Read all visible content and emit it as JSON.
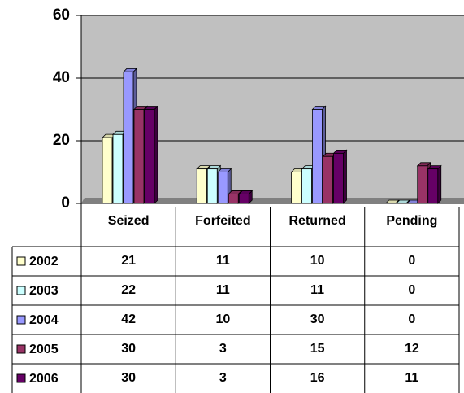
{
  "chart_data": {
    "type": "bar",
    "categories": [
      "Seized",
      "Forfeited",
      "Returned",
      "Pending"
    ],
    "series": [
      {
        "name": "2002",
        "color": "#ffffcc",
        "values": [
          21,
          11,
          10,
          0
        ]
      },
      {
        "name": "2003",
        "color": "#ccffff",
        "values": [
          22,
          11,
          11,
          0
        ]
      },
      {
        "name": "2004",
        "color": "#9999ff",
        "values": [
          42,
          10,
          30,
          0
        ]
      },
      {
        "name": "2005",
        "color": "#993366",
        "values": [
          30,
          3,
          15,
          12
        ]
      },
      {
        "name": "2006",
        "color": "#660066",
        "values": [
          30,
          3,
          16,
          11
        ]
      }
    ],
    "ylim": [
      0,
      60
    ],
    "yticks": [
      0,
      20,
      40,
      60
    ],
    "grid": true,
    "data_table": true
  }
}
